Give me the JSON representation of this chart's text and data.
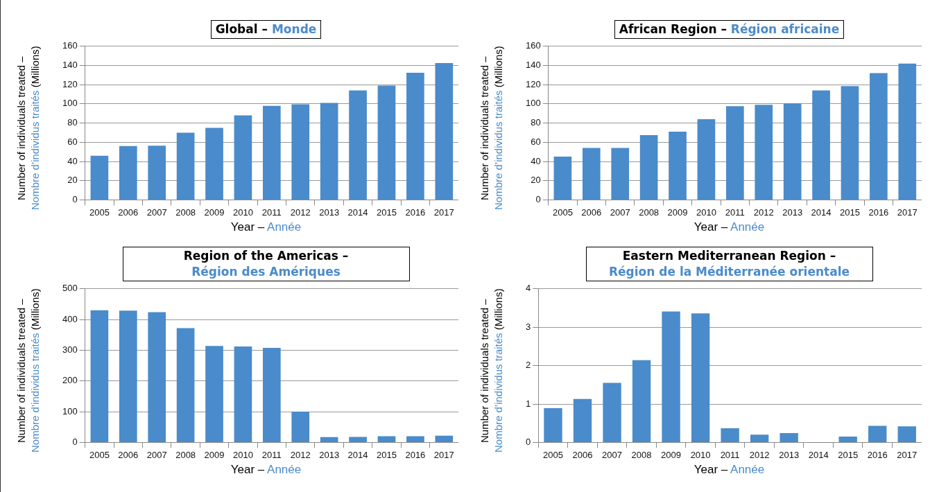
{
  "chart_data": [
    {
      "type": "bar",
      "title": "Global – Monde",
      "xlabel": "Year – Année",
      "ylabel": "Number of individuals treated – Nombre d’individus traités (Millions)",
      "categories": [
        "2005",
        "2006",
        "2007",
        "2008",
        "2009",
        "2010",
        "2011",
        "2012",
        "2013",
        "2014",
        "2015",
        "2016",
        "2017"
      ],
      "values": [
        46,
        56,
        56.5,
        70,
        75,
        88,
        98,
        99.5,
        101,
        114,
        119,
        132.5,
        142.5
      ],
      "color": "#4a8bcb",
      "ylim": [
        0,
        160
      ],
      "yticks": [
        0,
        20,
        40,
        60,
        80,
        100,
        120,
        140,
        160
      ],
      "grid": "y"
    },
    {
      "type": "bar",
      "title": "African Region – Région africaine",
      "xlabel": "Year – Année",
      "ylabel": "Number of individuals treated – Nombre d’individus traités (Millions)",
      "categories": [
        "2005",
        "2006",
        "2007",
        "2008",
        "2009",
        "2010",
        "2011",
        "2012",
        "2013",
        "2014",
        "2015",
        "2016",
        "2017"
      ],
      "values": [
        45,
        54,
        54,
        67.5,
        71,
        84,
        97.5,
        99,
        100.5,
        114,
        118.5,
        132,
        142
      ],
      "color": "#4a8bcb",
      "ylim": [
        0,
        160
      ],
      "yticks": [
        0,
        20,
        40,
        60,
        80,
        100,
        120,
        140,
        160
      ],
      "grid": "y"
    },
    {
      "type": "bar",
      "title": "Region of the Americas – Région des Amériques",
      "xlabel": "Year – Année",
      "ylabel": "Number of individuals treated – Nombre d’individus traités (Millions)",
      "categories": [
        "2005",
        "2006",
        "2007",
        "2008",
        "2009",
        "2010",
        "2011",
        "2012",
        "2013",
        "2014",
        "2015",
        "2016",
        "2017"
      ],
      "values": [
        430,
        429,
        424,
        372,
        314,
        312,
        308,
        100,
        17,
        18,
        20,
        20,
        22
      ],
      "color": "#4a8bcb",
      "ylim": [
        0,
        500
      ],
      "yticks": [
        0,
        100,
        200,
        300,
        400,
        500
      ],
      "grid": "y"
    },
    {
      "type": "bar",
      "title": "Eastern Mediterranean Region – Région de la Méditerranée orientale",
      "xlabel": "Year – Année",
      "ylabel": "Number of individuals treated – Nombre d’individus traités (Millions)",
      "categories": [
        "2005",
        "2006",
        "2007",
        "2008",
        "2009",
        "2010",
        "2011",
        "2012",
        "2013",
        "2014",
        "2015",
        "2016",
        "2017"
      ],
      "values": [
        0.89,
        1.13,
        1.55,
        2.14,
        3.41,
        3.36,
        0.37,
        0.2,
        0.24,
        0,
        0.15,
        0.43,
        0.42
      ],
      "color": "#4a8bcb",
      "ylim": [
        0,
        4
      ],
      "yticks": [
        0,
        1,
        2,
        3,
        4
      ],
      "grid": "y"
    }
  ]
}
